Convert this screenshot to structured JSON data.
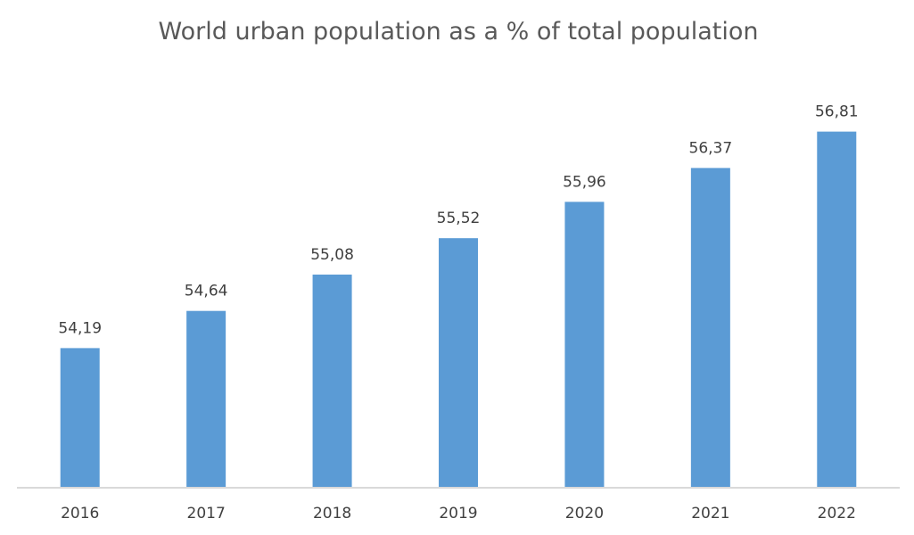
{
  "chart_data": {
    "type": "bar",
    "title": "World urban population as a % of total population",
    "categories": [
      "2016",
      "2017",
      "2018",
      "2019",
      "2020",
      "2021",
      "2022"
    ],
    "values": [
      54.19,
      54.64,
      55.08,
      55.52,
      55.96,
      56.37,
      56.81
    ],
    "data_labels": [
      "54,19",
      "54,64",
      "55,08",
      "55,52",
      "55,96",
      "56,37",
      "56,81"
    ],
    "xlabel": "",
    "ylabel": "",
    "ylim": [
      52.5,
      57
    ],
    "y_axis_visible": false,
    "grid": false,
    "legend": "none",
    "colors": {
      "bar": "#5B9BD5",
      "axis": "#D9D9D9",
      "text": "#404040",
      "title": "#595959"
    }
  }
}
